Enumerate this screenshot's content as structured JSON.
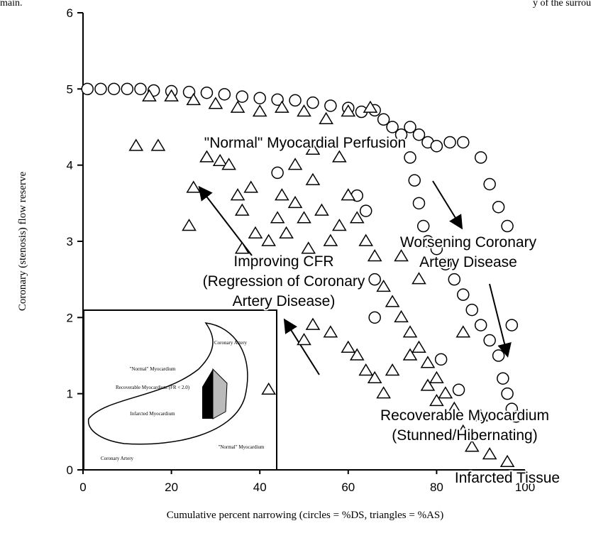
{
  "scan_fragments": [
    "main.",
    "y of the surrou"
  ],
  "chart_data": {
    "type": "scatter",
    "xlabel": "Cumulative percent narrowing (circles = %DS, triangles = %AS)",
    "ylabel": "Coronary (stenosis) flow reserve",
    "xlim": [
      0,
      100
    ],
    "ylim": [
      0,
      6
    ],
    "xticks": [
      0,
      20,
      40,
      60,
      80,
      100
    ],
    "yticks": [
      0,
      1,
      2,
      3,
      4,
      5,
      6
    ],
    "series": [
      {
        "marker": "circle",
        "color": "#000000",
        "x": [
          1,
          4,
          7,
          10,
          13,
          16,
          20,
          24,
          28,
          32,
          36,
          40,
          44,
          48,
          52,
          56,
          60,
          63,
          66,
          68,
          70,
          72,
          74,
          76,
          78,
          80,
          83,
          86,
          90,
          92,
          94,
          96,
          74,
          75,
          76,
          77,
          78,
          80,
          82,
          84,
          86,
          88,
          90,
          92,
          94,
          95,
          96,
          97,
          98,
          66,
          66,
          64,
          62,
          44,
          97,
          85,
          81
        ],
        "values": [
          5,
          5,
          5,
          5,
          5,
          4.98,
          4.97,
          4.96,
          4.95,
          4.93,
          4.9,
          4.88,
          4.86,
          4.85,
          4.82,
          4.78,
          4.75,
          4.7,
          4.72,
          4.6,
          4.5,
          4.4,
          4.5,
          4.4,
          4.3,
          4.25,
          4.3,
          4.3,
          4.1,
          3.75,
          3.45,
          3.2,
          4.1,
          3.8,
          3.5,
          3.2,
          3.0,
          2.9,
          2.7,
          2.5,
          2.3,
          2.1,
          1.9,
          1.7,
          1.5,
          1.2,
          1.0,
          0.8,
          0.7,
          2.5,
          2.0,
          3.4,
          3.6,
          3.9,
          1.9,
          1.05,
          1.45
        ]
      },
      {
        "marker": "triangle",
        "color": "#000000",
        "x": [
          12,
          17,
          25,
          24,
          28,
          31,
          33,
          35,
          36,
          36,
          38,
          39,
          42,
          44,
          45,
          46,
          48,
          50,
          51,
          52,
          54,
          56,
          58,
          60,
          62,
          64,
          66,
          68,
          70,
          72,
          74,
          76,
          78,
          80,
          82,
          84,
          86,
          88,
          50,
          52,
          56,
          60,
          62,
          64,
          66,
          68,
          70,
          74,
          78,
          42,
          80,
          86,
          90,
          92,
          96,
          60,
          65,
          55,
          50,
          45,
          40,
          35,
          30,
          25,
          20,
          15,
          58,
          52,
          48,
          72,
          76
        ],
        "values": [
          4.25,
          4.25,
          3.7,
          3.2,
          4.1,
          4.05,
          4.0,
          3.6,
          2.9,
          3.4,
          3.7,
          3.1,
          3.0,
          3.3,
          3.6,
          3.1,
          3.5,
          3.3,
          2.9,
          3.8,
          3.4,
          3.0,
          3.2,
          3.6,
          3.3,
          3.0,
          2.8,
          2.4,
          2.2,
          2.0,
          1.8,
          1.6,
          1.4,
          1.2,
          1.0,
          0.8,
          0.5,
          0.3,
          1.7,
          1.9,
          1.8,
          1.6,
          1.5,
          1.3,
          1.2,
          1.0,
          1.3,
          1.5,
          1.1,
          1.05,
          0.9,
          1.8,
          0.7,
          0.2,
          0.1,
          4.7,
          4.75,
          4.6,
          4.7,
          4.75,
          4.7,
          4.75,
          4.8,
          4.85,
          4.9,
          4.9,
          4.1,
          4.2,
          4.0,
          2.8,
          2.5
        ]
      }
    ],
    "annotations": [
      [
        "\"Normal\" Myocardial Perfusion"
      ],
      [
        "Worsening Coronary",
        "Artery Disease"
      ],
      [
        "Improving CFR",
        "(Regression of Coronary",
        "Artery Disease)"
      ],
      [
        "Recoverable Myocardium",
        "(Stunned/Hibernating)"
      ],
      [
        "Infarcted Tissue"
      ]
    ],
    "inset_labels": [
      "Coronary Artery",
      "\"Normal\" Myocardium",
      "Recoverable Myocardium (FR < 2.0)",
      "Infarcted Myocardium",
      "Coronary Artery",
      "\"Normal\" Myocardium"
    ]
  }
}
